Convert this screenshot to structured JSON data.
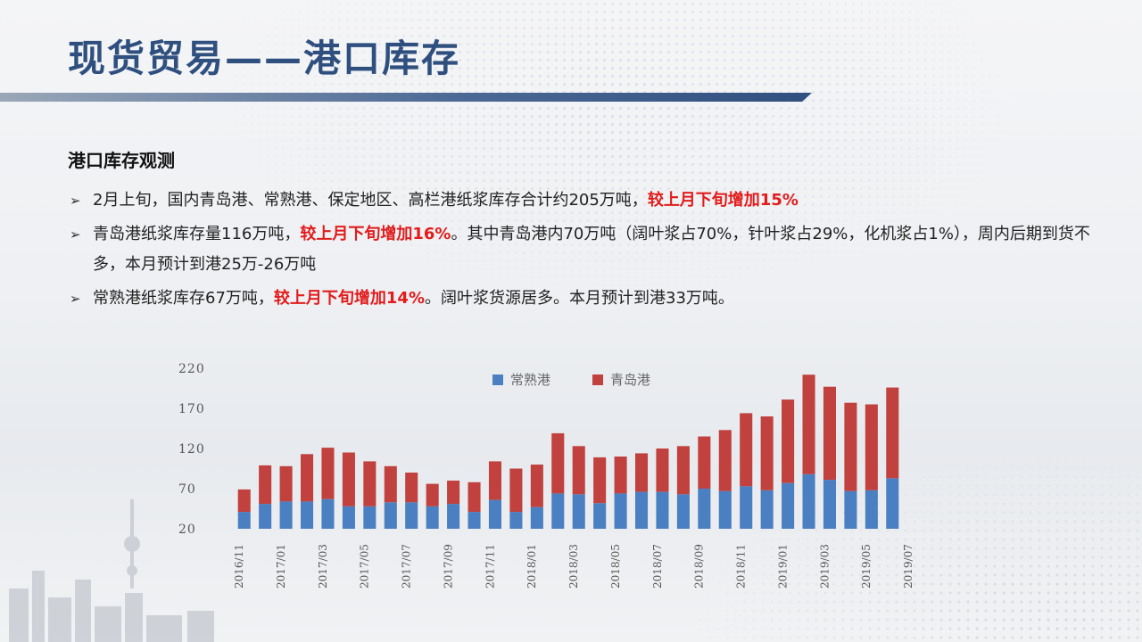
{
  "slide": {
    "title": "现货贸易——港口库存",
    "section_title": "港口库存观测",
    "bullets": [
      {
        "before": "2月上旬，国内青岛港、常熟港、保定地区、高栏港纸浆库存合计约205万吨，",
        "highlight": "较上月下旬增加15%",
        "after": ""
      },
      {
        "before": "青岛港纸浆库存量116万吨，",
        "highlight": "较上月下旬增加16%",
        "after": "。其中青岛港内70万吨（阔叶浆占70%，针叶浆占29%，化机浆占1%），周内后期到货不多，本月预计到港25万-26万吨"
      },
      {
        "before": "常熟港纸浆库存67万吨，",
        "highlight": "较上月下旬增加14%",
        "after": "。阔叶浆货源居多。本月预计到港33万吨。"
      }
    ],
    "colors": {
      "title": "#2f4f7f",
      "highlight": "#e21b1b"
    },
    "bullet_icon": "arrowhead-bullet-icon"
  },
  "chart_data": {
    "type": "bar",
    "stacked": true,
    "ylim": [
      20,
      220
    ],
    "y_ticks": [
      20,
      70,
      120,
      170,
      220
    ],
    "x_tick_labels": [
      "2016/11",
      "2017/01",
      "2017/03",
      "2017/05",
      "2017/07",
      "2017/09",
      "2017/11",
      "2018/01",
      "2018/03",
      "2018/05",
      "2018/07",
      "2018/09",
      "2018/11",
      "2019/01",
      "2019/03",
      "2019/05",
      "2019/07"
    ],
    "legend_position": "top-center",
    "grid": false,
    "series": [
      {
        "name": "常熟港",
        "color": "#4a7fc1",
        "values": [
          21,
          31,
          34,
          34,
          37,
          28,
          28,
          33,
          33,
          28,
          31,
          21,
          36,
          21,
          27,
          44,
          43,
          32,
          44,
          46,
          46,
          43,
          50,
          47,
          53,
          48,
          57,
          68,
          61,
          47,
          48,
          63
        ]
      },
      {
        "name": "青岛港",
        "color": "#c0413e",
        "values": [
          28,
          48,
          44,
          59,
          64,
          67,
          56,
          45,
          37,
          28,
          29,
          37,
          48,
          54,
          53,
          75,
          60,
          57,
          46,
          48,
          54,
          60,
          65,
          76,
          91,
          92,
          104,
          124,
          116,
          110,
          107,
          113
        ]
      }
    ]
  }
}
